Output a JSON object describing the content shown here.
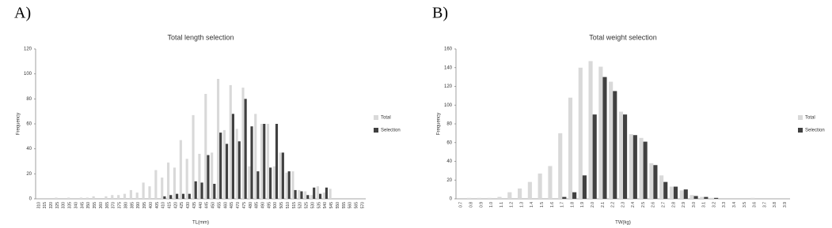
{
  "chart_data": [
    {
      "type": "bar",
      "panel_label": "A)",
      "title": "Total length selection",
      "xlabel": "TL(mm)",
      "ylabel": "Frequency",
      "categories": [
        "310",
        "315",
        "320",
        "325",
        "330",
        "335",
        "340",
        "345",
        "350",
        "355",
        "360",
        "365",
        "370",
        "375",
        "380",
        "385",
        "390",
        "395",
        "400",
        "405",
        "410",
        "415",
        "420",
        "425",
        "430",
        "435",
        "440",
        "445",
        "450",
        "455",
        "460",
        "465",
        "470",
        "475",
        "480",
        "485",
        "490",
        "495",
        "500",
        "505",
        "510",
        "515",
        "520",
        "525",
        "530",
        "535",
        "540",
        "545",
        "550",
        "555",
        "560",
        "565",
        "570"
      ],
      "series": [
        {
          "name": "Total",
          "color": "#d9d9d9",
          "values": [
            0,
            0,
            0,
            1,
            0,
            1,
            0,
            1,
            1,
            2,
            0,
            2,
            3,
            3,
            4,
            7,
            5,
            13,
            10,
            23,
            17,
            29,
            25,
            47,
            32,
            67,
            36,
            84,
            37,
            96,
            55,
            91,
            56,
            89,
            26,
            68,
            60,
            60,
            26,
            37,
            21,
            22,
            7,
            6,
            3,
            10,
            5,
            8,
            0,
            0,
            0,
            0,
            0
          ]
        },
        {
          "name": "Selection",
          "color": "#404040",
          "values": [
            0,
            0,
            0,
            0,
            0,
            0,
            0,
            0,
            0,
            0,
            0,
            0,
            0,
            0,
            0,
            0,
            0,
            0,
            0,
            0,
            2,
            3,
            4,
            4,
            4,
            14,
            13,
            35,
            12,
            53,
            44,
            68,
            46,
            80,
            58,
            22,
            60,
            25,
            60,
            37,
            22,
            7,
            6,
            3,
            9,
            4,
            9,
            0,
            0,
            0,
            0,
            0,
            0
          ]
        }
      ],
      "ylim": [
        0,
        120
      ],
      "yticks": [
        0,
        20,
        40,
        60,
        80,
        100,
        120
      ],
      "grid": false,
      "legend": "right"
    },
    {
      "type": "bar",
      "panel_label": "B)",
      "title": "Total weight selection",
      "xlabel": "TW(kg)",
      "ylabel": "Frequency",
      "categories": [
        "0.7",
        "0.8",
        "0.9",
        "1.0",
        "1.1",
        "1.2",
        "1.3",
        "1.4",
        "1.5",
        "1.6",
        "1.7",
        "1.8",
        "1.9",
        "2.0",
        "2.1",
        "2.2",
        "2.3",
        "2.4",
        "2.5",
        "2.6",
        "2.7",
        "2.8",
        "2.9",
        "3.0",
        "3.1",
        "3.2",
        "3.3",
        "3.4",
        "3.5",
        "3.6",
        "3.7",
        "3.8",
        "3.9"
      ],
      "series": [
        {
          "name": "Total",
          "color": "#d9d9d9",
          "values": [
            0,
            1,
            1,
            1,
            2,
            7,
            11,
            18,
            27,
            35,
            70,
            108,
            140,
            147,
            141,
            125,
            93,
            69,
            65,
            38,
            25,
            13,
            9,
            4,
            2,
            1,
            0,
            0,
            0,
            1,
            0,
            0,
            0
          ]
        },
        {
          "name": "Selection",
          "color": "#404040",
          "values": [
            0,
            0,
            0,
            0,
            0,
            0,
            0,
            0,
            0,
            0,
            2,
            7,
            25,
            90,
            130,
            115,
            90,
            68,
            61,
            36,
            18,
            13,
            10,
            3,
            2,
            1,
            0,
            0,
            0,
            0,
            0,
            0,
            0
          ]
        }
      ],
      "ylim": [
        0,
        160
      ],
      "yticks": [
        0,
        20,
        40,
        60,
        80,
        100,
        120,
        140,
        160
      ],
      "grid": false,
      "legend": "right"
    }
  ]
}
